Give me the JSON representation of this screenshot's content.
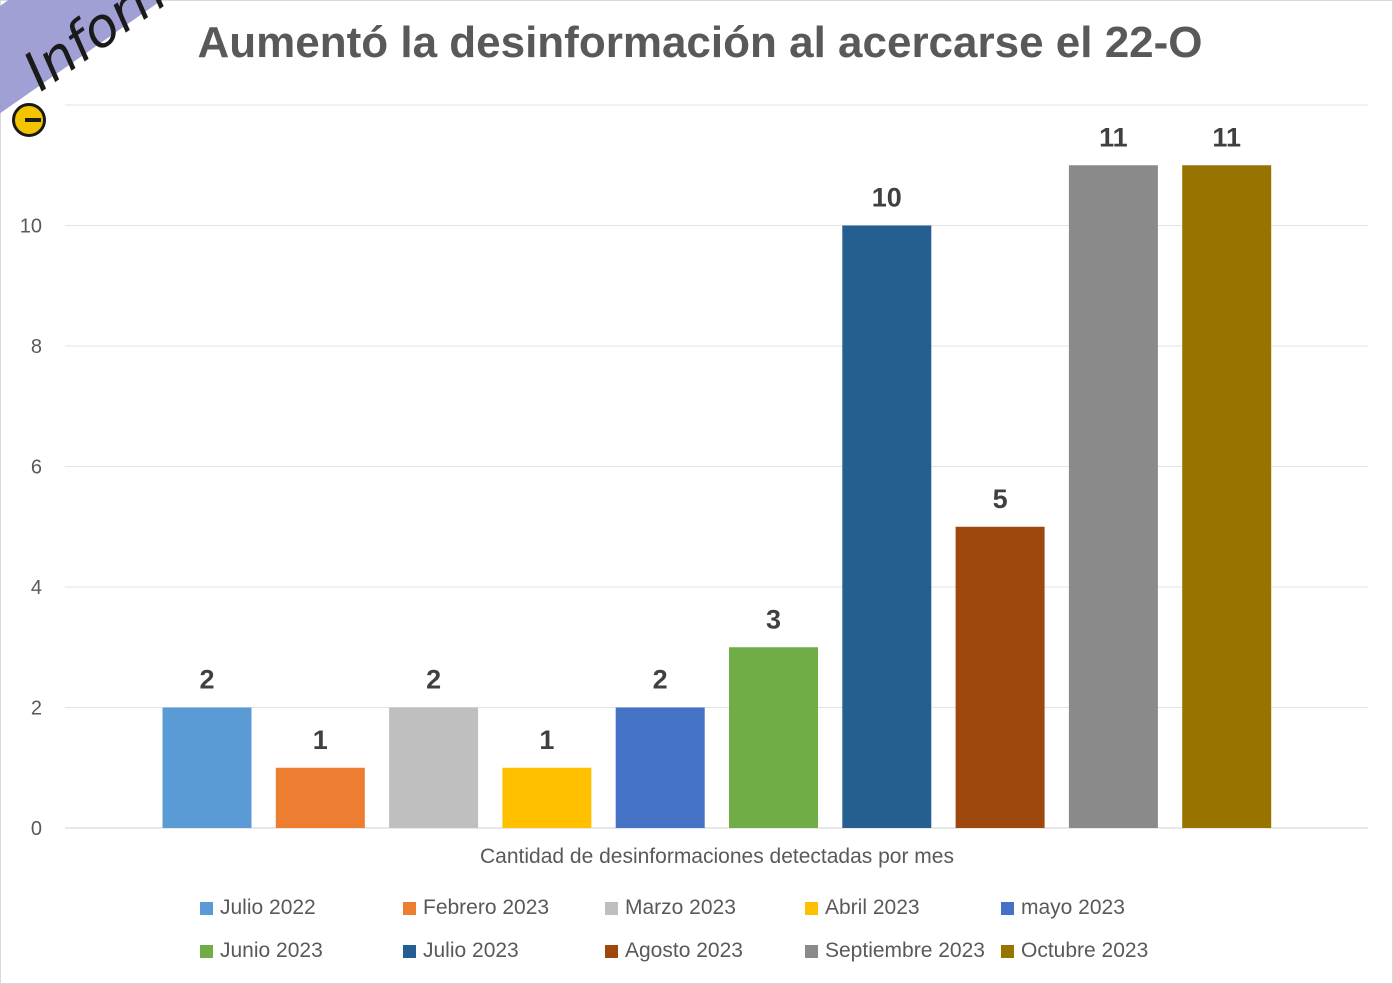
{
  "chart_data": {
    "type": "bar",
    "title": "Aumentó la desinformación al acercarse el 22-O",
    "xlabel": "Cantidad de desinformaciones detectadas por mes",
    "ylabel": "",
    "ylim": [
      0,
      12
    ],
    "yticks": [
      "0",
      "2",
      "4",
      "6",
      "8",
      "10"
    ],
    "grid": true,
    "legend_position": "bottom",
    "categories": [
      "Julio 2022",
      "Febrero 2023",
      "Marzo 2023",
      "Abril 2023",
      "mayo 2023",
      "Junio 2023",
      "Julio 2023",
      "Agosto 2023",
      "Septiembre 2023",
      "Octubre 2023"
    ],
    "values": [
      2,
      1,
      2,
      1,
      2,
      3,
      10,
      5,
      11,
      11
    ],
    "data_labels": [
      "2",
      "1",
      "2",
      "1",
      "2",
      "3",
      "10",
      "5",
      "11",
      "11"
    ],
    "colors": [
      "#5b9bd5",
      "#ed7d31",
      "#bfbfbf",
      "#ffc000",
      "#4472c4",
      "#70ad47",
      "#255e91",
      "#9e480e",
      "#8a8a8a",
      "#977400"
    ]
  },
  "logo": {
    "text": "Informa",
    "band_color": "#9b9bd2",
    "accent_color": "#f2c500"
  }
}
